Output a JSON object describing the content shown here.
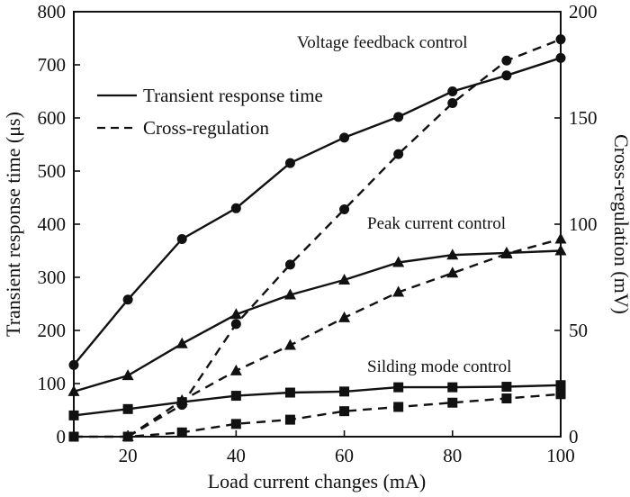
{
  "chart_data": {
    "type": "line",
    "xlabel": "Load current changes (mA)",
    "ylabel_left": "Transient response time (μs)",
    "ylabel_right": "Cross-regulation (mV)",
    "xlim": [
      10,
      100
    ],
    "ylim_left": [
      0,
      800
    ],
    "ylim_right": [
      0,
      200
    ],
    "xticks": [
      20,
      40,
      60,
      80,
      100
    ],
    "yticks_left": [
      0,
      100,
      200,
      300,
      400,
      500,
      600,
      700,
      800
    ],
    "yticks_right": [
      0,
      50,
      100,
      150,
      200
    ],
    "grid": false,
    "legend": {
      "position": "top-left",
      "entries": [
        {
          "label": "Transient response time",
          "style": "solid"
        },
        {
          "label": "Cross-regulation",
          "style": "dashed"
        }
      ]
    },
    "annotations": [
      {
        "text": "Voltage feedback control"
      },
      {
        "text": "Peak current control"
      },
      {
        "text": "Silding mode control"
      }
    ],
    "series": [
      {
        "group": "voltage-feedback",
        "metric": "transient-response",
        "axis": "left",
        "style": "solid",
        "marker": "circle",
        "x": [
          10,
          20,
          30,
          40,
          50,
          60,
          70,
          80,
          90,
          100
        ],
        "y": [
          135,
          258,
          372,
          430,
          515,
          563,
          602,
          650,
          680,
          713
        ]
      },
      {
        "group": "voltage-feedback",
        "metric": "cross-regulation",
        "axis": "right",
        "style": "dashed",
        "marker": "circle",
        "x": [
          20,
          30,
          40,
          50,
          60,
          70,
          80,
          90,
          100
        ],
        "y": [
          0,
          15,
          53,
          81,
          107,
          133,
          157,
          177,
          187
        ]
      },
      {
        "group": "peak-current",
        "metric": "transient-response",
        "axis": "left",
        "style": "solid",
        "marker": "triangle",
        "x": [
          10,
          20,
          30,
          40,
          50,
          60,
          70,
          80,
          90,
          100
        ],
        "y": [
          85,
          115,
          175,
          230,
          267,
          295,
          328,
          342,
          346,
          350
        ]
      },
      {
        "group": "peak-current",
        "metric": "cross-regulation",
        "axis": "right",
        "style": "dashed",
        "marker": "triangle",
        "x": [
          20,
          30,
          40,
          50,
          60,
          70,
          80,
          90,
          100
        ],
        "y": [
          0,
          17,
          31,
          43,
          56,
          68,
          77,
          86,
          93
        ]
      },
      {
        "group": "sliding-mode",
        "metric": "transient-response",
        "axis": "left",
        "style": "solid",
        "marker": "square",
        "x": [
          10,
          20,
          30,
          40,
          50,
          60,
          70,
          80,
          90,
          100
        ],
        "y": [
          40,
          52,
          65,
          77,
          83,
          85,
          93,
          93,
          94,
          97
        ]
      },
      {
        "group": "sliding-mode",
        "metric": "cross-regulation",
        "axis": "right",
        "style": "dashed",
        "marker": "square",
        "x": [
          10,
          20,
          30,
          40,
          50,
          60,
          70,
          80,
          90,
          100
        ],
        "y": [
          0,
          0,
          2,
          6,
          8,
          12,
          14,
          16,
          18,
          20
        ]
      }
    ]
  }
}
